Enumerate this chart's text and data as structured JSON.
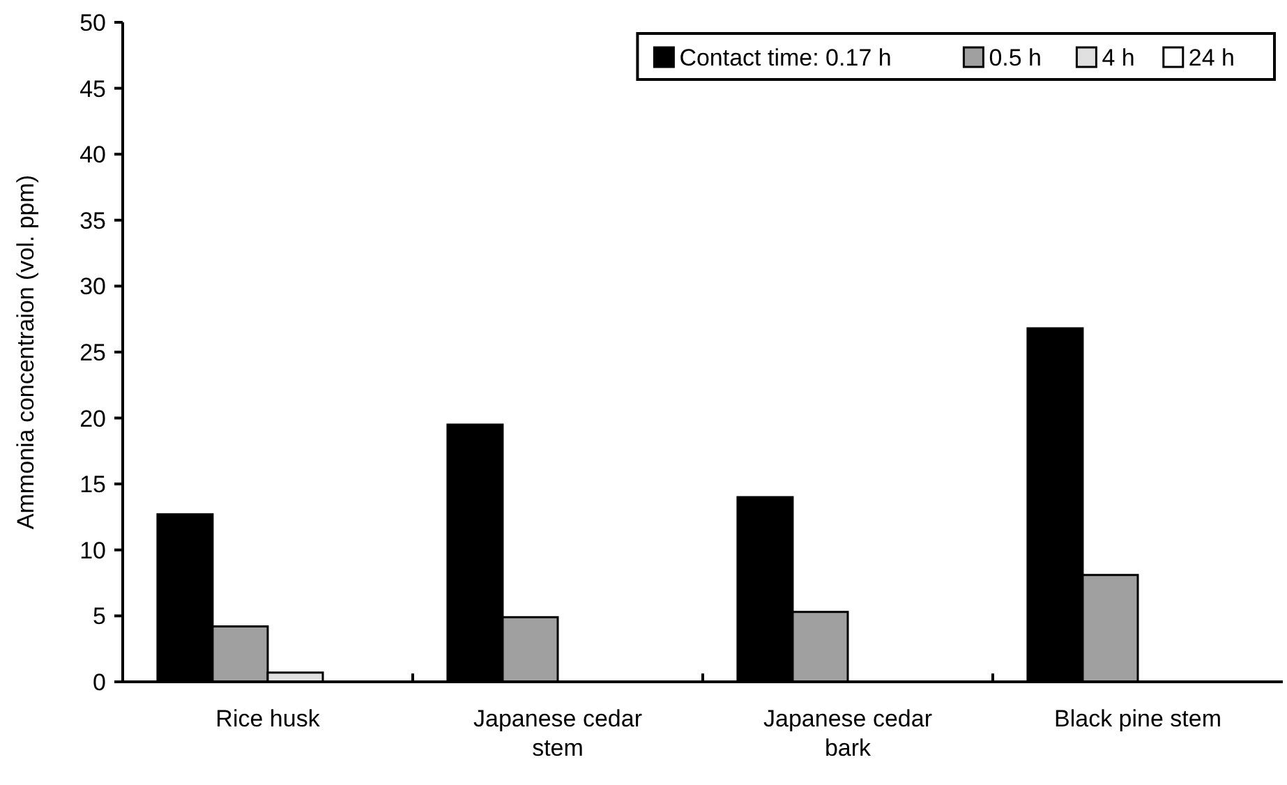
{
  "chart_data": {
    "type": "bar",
    "ylabel": "Ammonia concentraion (vol. ppm)",
    "categories": [
      "Rice husk",
      "Japanese cedar stem",
      "Japanese cedar bark",
      "Black pine stem"
    ],
    "series": [
      {
        "name": "Contact time: 0.17 h",
        "color": "#000000",
        "values": [
          12.7,
          19.5,
          14.0,
          26.8
        ]
      },
      {
        "name": "0.5 h",
        "color": "#a0a0a0",
        "values": [
          4.2,
          4.9,
          5.3,
          8.1
        ]
      },
      {
        "name": "4 h",
        "color": "#e0e0e0",
        "values": [
          0.7,
          0,
          0,
          0
        ]
      },
      {
        "name": "24 h",
        "color": "#ffffff",
        "values": [
          0,
          0,
          0,
          0
        ]
      }
    ],
    "ylim": [
      0,
      50
    ],
    "yticks": [
      0,
      5,
      10,
      15,
      20,
      25,
      30,
      35,
      40,
      45,
      50
    ],
    "grid": false,
    "legend": "top right"
  }
}
